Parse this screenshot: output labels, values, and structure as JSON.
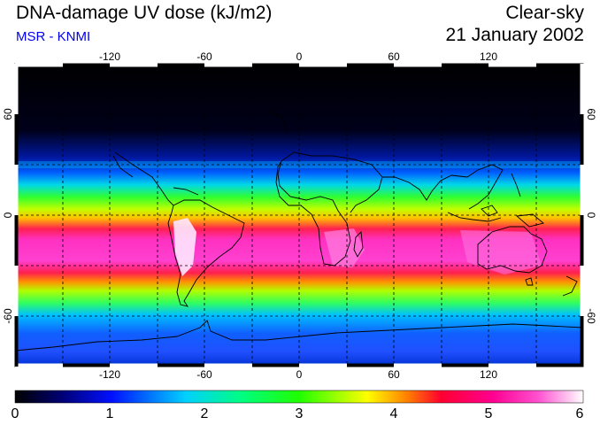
{
  "header": {
    "title": "DNA-damage UV dose (kJ/m2)",
    "source": "MSR - KNMI",
    "mode": "Clear-sky",
    "date": "21 January 2002"
  },
  "map": {
    "longitude_labels": [
      "-120",
      "-60",
      "0",
      "60",
      "120"
    ],
    "latitude_labels": [
      "60",
      "0",
      "-60"
    ]
  },
  "colorbar": {
    "ticks": [
      "0",
      "1",
      "2",
      "3",
      "4",
      "5",
      "6"
    ],
    "min": 0,
    "max": 6
  },
  "colors": {
    "title_blue": "#0000ee"
  }
}
